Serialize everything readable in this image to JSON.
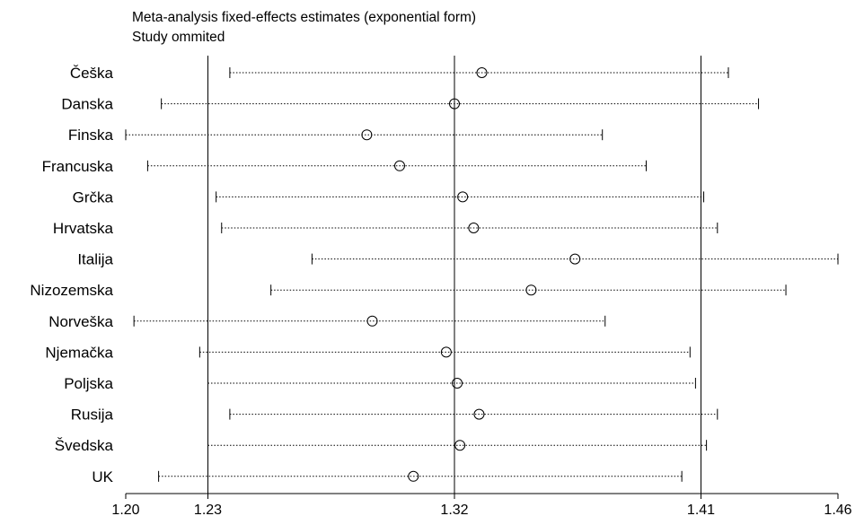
{
  "chart_data": {
    "type": "forest",
    "title": "Meta-analysis fixed-effects estimates (exponential form)",
    "subtitle": "Study ommited",
    "xlim": [
      1.2,
      1.46
    ],
    "xticks": [
      {
        "value": 1.2,
        "label": "1.20"
      },
      {
        "value": 1.23,
        "label": "1.23"
      },
      {
        "value": 1.32,
        "label": "1.32"
      },
      {
        "value": 1.41,
        "label": "1.41"
      },
      {
        "value": 1.46,
        "label": "1.46"
      }
    ],
    "reference_lines": [
      1.23,
      1.32,
      1.41
    ],
    "studies": [
      {
        "label": "Češka",
        "estimate": 1.33,
        "lower": 1.238,
        "upper": 1.42
      },
      {
        "label": "Danska",
        "estimate": 1.32,
        "lower": 1.213,
        "upper": 1.431
      },
      {
        "label": "Finska",
        "estimate": 1.288,
        "lower": 1.2,
        "upper": 1.374
      },
      {
        "label": "Francuska",
        "estimate": 1.3,
        "lower": 1.208,
        "upper": 1.39
      },
      {
        "label": "Grčka",
        "estimate": 1.323,
        "lower": 1.233,
        "upper": 1.411
      },
      {
        "label": "Hrvatska",
        "estimate": 1.327,
        "lower": 1.235,
        "upper": 1.416
      },
      {
        "label": "Italija",
        "estimate": 1.364,
        "lower": 1.268,
        "upper": 1.46
      },
      {
        "label": "Nizozemska",
        "estimate": 1.348,
        "lower": 1.253,
        "upper": 1.441
      },
      {
        "label": "Norveška",
        "estimate": 1.29,
        "lower": 1.203,
        "upper": 1.375
      },
      {
        "label": "Njemačka",
        "estimate": 1.317,
        "lower": 1.227,
        "upper": 1.406
      },
      {
        "label": "Poljska",
        "estimate": 1.321,
        "lower": 1.23,
        "upper": 1.408
      },
      {
        "label": "Rusija",
        "estimate": 1.329,
        "lower": 1.238,
        "upper": 1.416
      },
      {
        "label": "Švedska",
        "estimate": 1.322,
        "lower": 1.23,
        "upper": 1.412
      },
      {
        "label": "UK",
        "estimate": 1.305,
        "lower": 1.212,
        "upper": 1.403
      }
    ]
  }
}
